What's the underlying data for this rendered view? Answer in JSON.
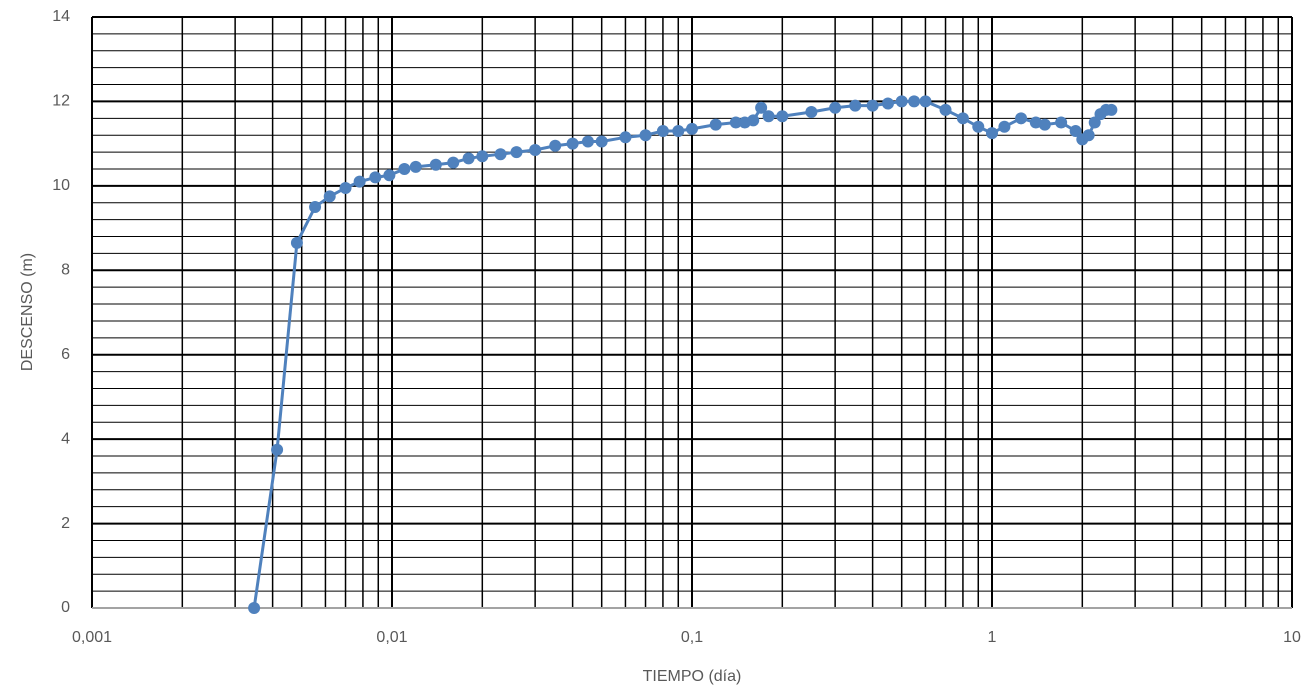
{
  "chart_data": {
    "type": "line",
    "x_label": "TIEMPO (día)",
    "y_label": "DESCENSO (m)",
    "x_log": true,
    "grid": true,
    "minor_grid": true,
    "y_minor_divisions": 5,
    "xlim": [
      0.001,
      10
    ],
    "ylim": [
      0,
      14
    ],
    "xticks": [
      {
        "value": 0.001,
        "label": "0,001"
      },
      {
        "value": 0.01,
        "label": "0,01"
      },
      {
        "value": 0.1,
        "label": "0,1"
      },
      1,
      10
    ],
    "yticks": [
      0,
      2,
      4,
      6,
      8,
      10,
      12,
      14
    ],
    "series": [
      {
        "color": "#4f81bd",
        "x": [
          0.00347,
          0.00414,
          0.00482,
          0.00554,
          0.0062,
          0.007,
          0.0078,
          0.0088,
          0.0098,
          0.011,
          0.012,
          0.014,
          0.016,
          0.018,
          0.02,
          0.023,
          0.026,
          0.03,
          0.035,
          0.04,
          0.045,
          0.05,
          0.06,
          0.07,
          0.08,
          0.09,
          0.1,
          0.12,
          0.14,
          0.15,
          0.16,
          0.17,
          0.18,
          0.2,
          0.25,
          0.3,
          0.35,
          0.4,
          0.45,
          0.5,
          0.55,
          0.6,
          0.7,
          0.8,
          0.9,
          1.0,
          1.1,
          1.25,
          1.4,
          1.5,
          1.7,
          1.9,
          2.0,
          2.1,
          2.2,
          2.3,
          2.4,
          2.5
        ],
        "y": [
          0,
          3.75,
          8.65,
          9.5,
          9.75,
          9.95,
          10.1,
          10.2,
          10.25,
          10.4,
          10.45,
          10.5,
          10.55,
          10.65,
          10.7,
          10.75,
          10.8,
          10.85,
          10.95,
          11.0,
          11.05,
          11.05,
          11.15,
          11.2,
          11.3,
          11.3,
          11.35,
          11.45,
          11.5,
          11.5,
          11.55,
          11.85,
          11.65,
          11.65,
          11.75,
          11.85,
          11.9,
          11.9,
          11.95,
          12.0,
          12.0,
          12.0,
          11.8,
          11.6,
          11.4,
          11.25,
          11.4,
          11.6,
          11.5,
          11.45,
          11.5,
          11.3,
          11.1,
          11.2,
          11.5,
          11.7,
          11.8,
          11.8
        ]
      }
    ]
  }
}
